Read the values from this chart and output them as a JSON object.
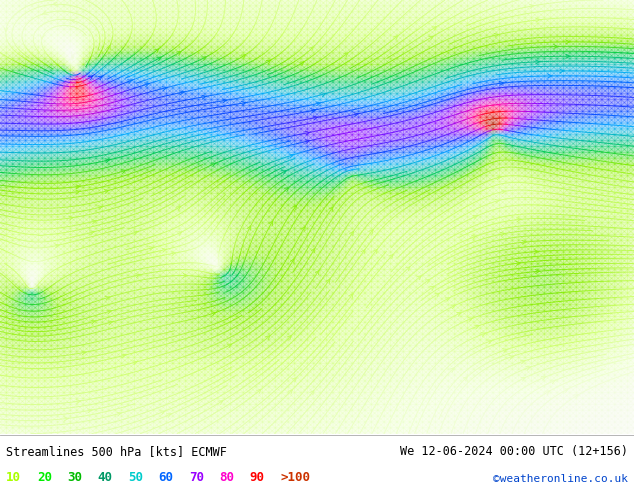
{
  "title_left": "Streamlines 500 hPa [kts] ECMWF",
  "title_right": "We 12-06-2024 00:00 UTC (12+156)",
  "credit": "©weatheronline.co.uk",
  "legend_values": [
    "10",
    "20",
    "30",
    "40",
    "50",
    "60",
    "70",
    "80",
    "90",
    ">100"
  ],
  "legend_colors": [
    "#aaff00",
    "#00ee00",
    "#00bb00",
    "#009966",
    "#00cccc",
    "#0066ff",
    "#9900ff",
    "#ff00cc",
    "#ff0000",
    "#cc3300"
  ],
  "background_color": "#ffffff",
  "figsize": [
    6.34,
    4.9
  ],
  "dpi": 100,
  "speed_colors": [
    [
      0.0,
      "#f8f8f8"
    ],
    [
      0.08,
      "#eeffcc"
    ],
    [
      0.18,
      "#ccff66"
    ],
    [
      0.28,
      "#88ee00"
    ],
    [
      0.38,
      "#00cc44"
    ],
    [
      0.48,
      "#00bbaa"
    ],
    [
      0.58,
      "#00aaff"
    ],
    [
      0.68,
      "#0044ff"
    ],
    [
      0.78,
      "#8800ff"
    ],
    [
      0.88,
      "#ff00aa"
    ],
    [
      0.94,
      "#ff0000"
    ],
    [
      1.0,
      "#aa2200"
    ]
  ],
  "vmax": 120
}
